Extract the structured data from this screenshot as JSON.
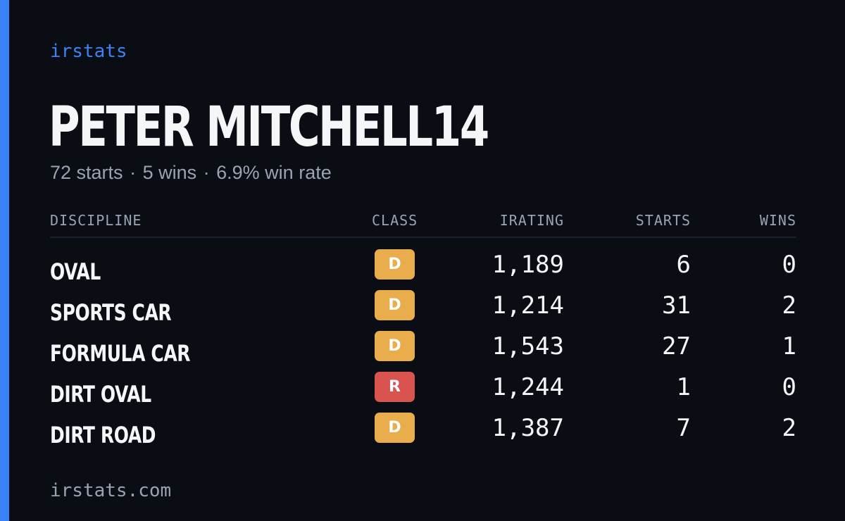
{
  "brand": "irstats",
  "player": {
    "name": "PETER MITCHELL14",
    "summary": {
      "starts": "72 starts",
      "wins": "5 wins",
      "win_rate": "6.9% win rate",
      "separator": "·"
    }
  },
  "table": {
    "headers": {
      "discipline": "DISCIPLINE",
      "class": "CLASS",
      "irating": "IRATING",
      "starts": "STARTS",
      "wins": "WINS"
    },
    "rows": [
      {
        "discipline": "OVAL",
        "class": "D",
        "class_color": "#e9ad4c",
        "irating": "1,189",
        "starts": "6",
        "wins": "0"
      },
      {
        "discipline": "SPORTS CAR",
        "class": "D",
        "class_color": "#e9ad4c",
        "irating": "1,214",
        "starts": "31",
        "wins": "2"
      },
      {
        "discipline": "FORMULA CAR",
        "class": "D",
        "class_color": "#e9ad4c",
        "irating": "1,543",
        "starts": "27",
        "wins": "1"
      },
      {
        "discipline": "DIRT OVAL",
        "class": "R",
        "class_color": "#d9534f",
        "irating": "1,244",
        "starts": "1",
        "wins": "0"
      },
      {
        "discipline": "DIRT ROAD",
        "class": "D",
        "class_color": "#e9ad4c",
        "irating": "1,387",
        "starts": "7",
        "wins": "2"
      }
    ]
  },
  "footer": {
    "url": "irstats.com"
  },
  "colors": {
    "accent": "#3b82f6",
    "background": "#0a0d14",
    "muted": "#9aa3b2",
    "text": "#f5f6f8"
  }
}
